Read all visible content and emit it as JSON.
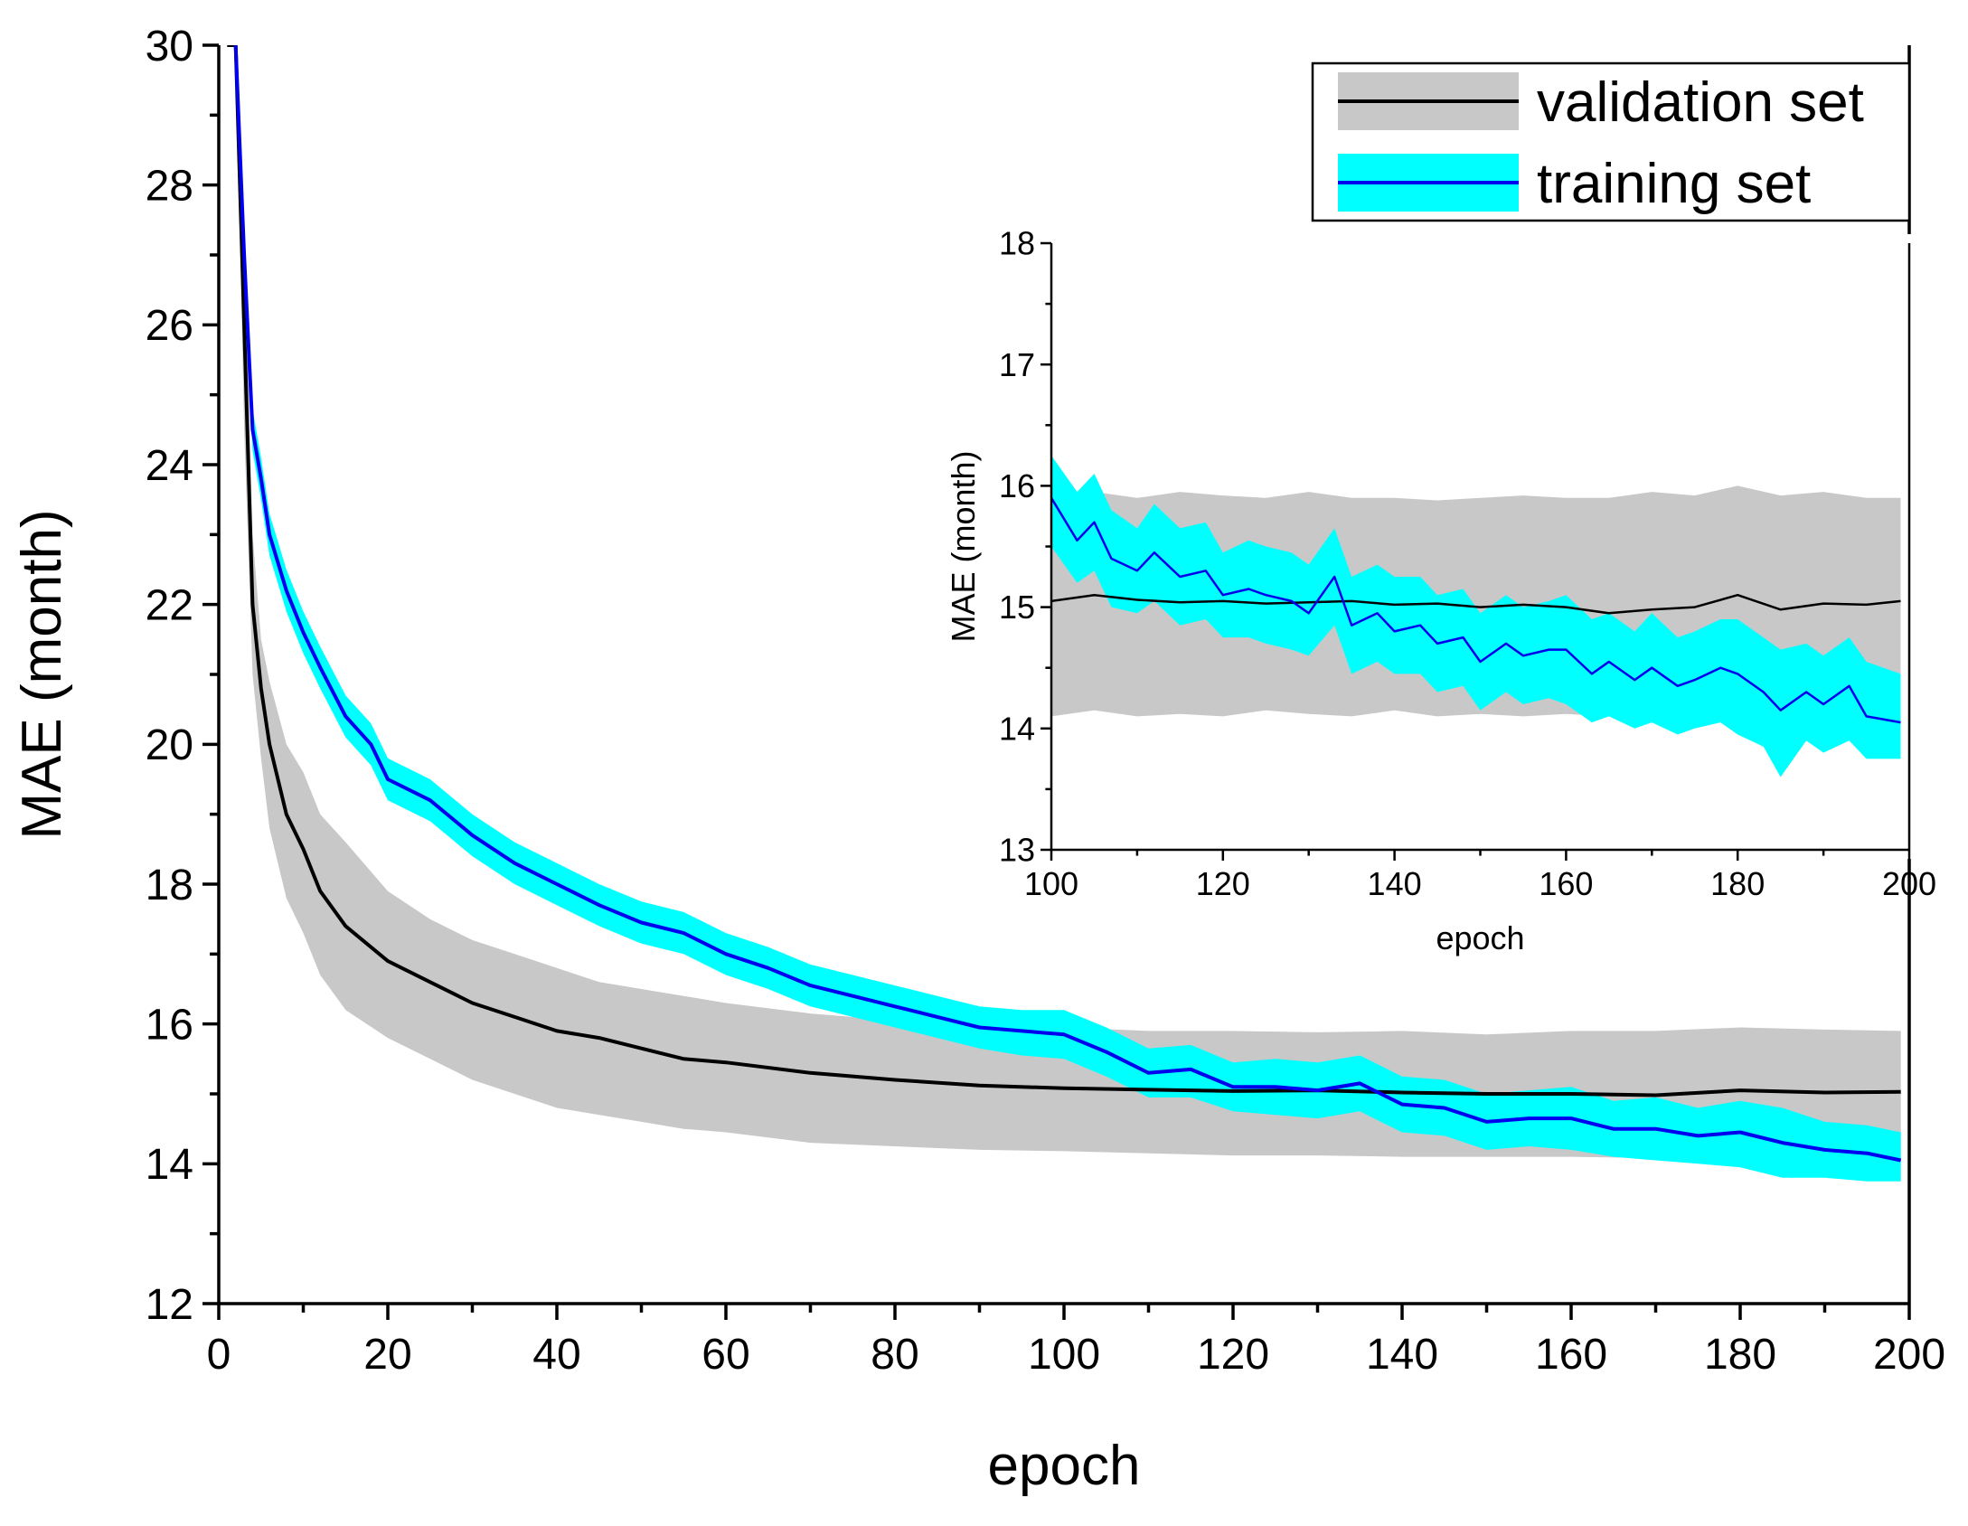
{
  "chart_data": [
    {
      "type": "line",
      "xlabel": "epoch",
      "ylabel": "MAE (month)",
      "xlim": [
        0,
        200
      ],
      "ylim": [
        12,
        30
      ],
      "xticks": [
        0,
        20,
        40,
        60,
        80,
        100,
        120,
        140,
        160,
        180,
        200
      ],
      "yticks": [
        12,
        14,
        16,
        18,
        20,
        22,
        24,
        26,
        28,
        30
      ],
      "grid": false,
      "legend_position": "top-right",
      "series": [
        {
          "name": "validation set",
          "line_color": "#000000",
          "band_color": "#c8c8c8",
          "x": [
            1,
            2,
            3,
            4,
            5,
            6,
            8,
            10,
            12,
            15,
            20,
            25,
            30,
            35,
            40,
            45,
            50,
            55,
            60,
            70,
            80,
            90,
            100,
            110,
            120,
            130,
            140,
            150,
            160,
            170,
            180,
            190,
            199
          ],
          "mean": [
            30.5,
            30.5,
            26.0,
            22.0,
            20.8,
            20.0,
            19.0,
            18.5,
            17.9,
            17.4,
            16.9,
            16.6,
            16.3,
            16.1,
            15.9,
            15.8,
            15.65,
            15.5,
            15.45,
            15.3,
            15.2,
            15.12,
            15.08,
            15.06,
            15.04,
            15.05,
            15.02,
            15.0,
            15.0,
            14.98,
            15.05,
            15.02,
            15.03
          ],
          "lower": [
            30.5,
            30.5,
            24.5,
            21.0,
            19.8,
            18.8,
            17.8,
            17.3,
            16.7,
            16.2,
            15.8,
            15.5,
            15.2,
            15.0,
            14.8,
            14.7,
            14.6,
            14.5,
            14.45,
            14.3,
            14.25,
            14.2,
            14.18,
            14.15,
            14.12,
            14.12,
            14.1,
            14.1,
            14.1,
            14.08,
            14.1,
            14.1,
            14.05
          ],
          "upper": [
            30.5,
            30.5,
            27.5,
            23.0,
            21.5,
            20.9,
            20.0,
            19.6,
            19.0,
            18.6,
            17.9,
            17.5,
            17.2,
            17.0,
            16.8,
            16.6,
            16.5,
            16.4,
            16.3,
            16.15,
            16.05,
            15.95,
            15.95,
            15.9,
            15.9,
            15.88,
            15.9,
            15.85,
            15.9,
            15.9,
            15.95,
            15.92,
            15.9
          ]
        },
        {
          "name": "training set",
          "line_color": "#0000ee",
          "band_color": "#00ffff",
          "x": [
            2,
            3,
            4,
            5,
            6,
            8,
            10,
            12,
            15,
            18,
            20,
            25,
            30,
            35,
            40,
            45,
            50,
            55,
            60,
            65,
            70,
            75,
            80,
            85,
            90,
            95,
            100,
            105,
            110,
            115,
            120,
            125,
            130,
            135,
            140,
            145,
            150,
            155,
            160,
            165,
            170,
            175,
            180,
            185,
            190,
            195,
            199
          ],
          "mean": [
            30.5,
            27.0,
            24.5,
            23.8,
            23.0,
            22.2,
            21.6,
            21.1,
            20.4,
            20.0,
            19.5,
            19.2,
            18.7,
            18.3,
            18.0,
            17.7,
            17.45,
            17.3,
            17.0,
            16.8,
            16.55,
            16.4,
            16.25,
            16.1,
            15.95,
            15.9,
            15.85,
            15.6,
            15.3,
            15.35,
            15.1,
            15.1,
            15.05,
            15.15,
            14.85,
            14.8,
            14.6,
            14.65,
            14.65,
            14.5,
            14.5,
            14.4,
            14.45,
            14.3,
            14.2,
            14.15,
            14.05
          ],
          "lower": [
            30.5,
            26.5,
            24.2,
            23.5,
            22.7,
            21.9,
            21.3,
            20.8,
            20.1,
            19.7,
            19.2,
            18.9,
            18.4,
            18.0,
            17.7,
            17.4,
            17.15,
            17.0,
            16.7,
            16.5,
            16.25,
            16.1,
            15.95,
            15.8,
            15.65,
            15.55,
            15.5,
            15.25,
            14.95,
            14.95,
            14.75,
            14.7,
            14.65,
            14.75,
            14.45,
            14.4,
            14.2,
            14.25,
            14.2,
            14.1,
            14.05,
            14.0,
            13.95,
            13.8,
            13.8,
            13.75,
            13.75
          ],
          "upper": [
            30.5,
            27.5,
            24.8,
            24.1,
            23.3,
            22.5,
            21.9,
            21.4,
            20.7,
            20.3,
            19.8,
            19.5,
            19.0,
            18.6,
            18.3,
            18.0,
            17.75,
            17.6,
            17.3,
            17.1,
            16.85,
            16.7,
            16.55,
            16.4,
            16.25,
            16.2,
            16.2,
            15.95,
            15.65,
            15.7,
            15.45,
            15.5,
            15.45,
            15.55,
            15.25,
            15.2,
            15.0,
            15.05,
            15.1,
            14.9,
            14.95,
            14.8,
            14.9,
            14.8,
            14.6,
            14.55,
            14.45
          ]
        }
      ]
    },
    {
      "type": "line",
      "xlabel": "epoch",
      "ylabel": "MAE (month)",
      "xlim": [
        100,
        200
      ],
      "ylim": [
        13,
        18
      ],
      "xticks": [
        100,
        120,
        140,
        160,
        180,
        200
      ],
      "yticks": [
        13,
        14,
        15,
        16,
        17,
        18
      ],
      "grid": false,
      "series": [
        {
          "name": "validation set",
          "line_color": "#000000",
          "band_color": "#c8c8c8",
          "x": [
            100,
            105,
            110,
            115,
            120,
            125,
            130,
            135,
            140,
            145,
            150,
            155,
            160,
            165,
            170,
            175,
            180,
            185,
            190,
            195,
            199
          ],
          "mean": [
            15.05,
            15.1,
            15.06,
            15.04,
            15.05,
            15.03,
            15.04,
            15.05,
            15.02,
            15.03,
            15.0,
            15.02,
            15.0,
            14.95,
            14.98,
            15.0,
            15.1,
            14.98,
            15.03,
            15.02,
            15.05
          ],
          "lower": [
            14.1,
            14.15,
            14.1,
            14.12,
            14.1,
            14.15,
            14.12,
            14.1,
            14.15,
            14.1,
            14.12,
            14.1,
            14.12,
            14.1,
            14.1,
            14.12,
            14.1,
            14.1,
            14.1,
            14.1,
            14.1
          ],
          "upper": [
            15.95,
            15.95,
            15.9,
            15.95,
            15.92,
            15.9,
            15.95,
            15.9,
            15.9,
            15.88,
            15.9,
            15.92,
            15.9,
            15.9,
            15.95,
            15.92,
            16.0,
            15.92,
            15.95,
            15.9,
            15.9
          ]
        },
        {
          "name": "training set",
          "line_color": "#0000ee",
          "band_color": "#00ffff",
          "x": [
            100,
            103,
            105,
            107,
            110,
            112,
            115,
            118,
            120,
            123,
            125,
            128,
            130,
            133,
            135,
            138,
            140,
            143,
            145,
            148,
            150,
            153,
            155,
            158,
            160,
            163,
            165,
            168,
            170,
            173,
            175,
            178,
            180,
            183,
            185,
            188,
            190,
            193,
            195,
            199
          ],
          "mean": [
            15.9,
            15.55,
            15.7,
            15.4,
            15.3,
            15.45,
            15.25,
            15.3,
            15.1,
            15.15,
            15.1,
            15.05,
            14.95,
            15.25,
            14.85,
            14.95,
            14.8,
            14.85,
            14.7,
            14.75,
            14.55,
            14.7,
            14.6,
            14.65,
            14.65,
            14.45,
            14.55,
            14.4,
            14.5,
            14.35,
            14.4,
            14.5,
            14.45,
            14.3,
            14.15,
            14.3,
            14.2,
            14.35,
            14.1,
            14.05
          ],
          "lower": [
            15.5,
            15.2,
            15.3,
            15.0,
            14.95,
            15.05,
            14.85,
            14.9,
            14.75,
            14.75,
            14.7,
            14.65,
            14.6,
            14.85,
            14.45,
            14.55,
            14.45,
            14.45,
            14.3,
            14.35,
            14.15,
            14.3,
            14.2,
            14.25,
            14.2,
            14.05,
            14.1,
            14.0,
            14.05,
            13.95,
            14.0,
            14.05,
            13.95,
            13.85,
            13.6,
            13.9,
            13.8,
            13.9,
            13.75,
            13.75
          ],
          "upper": [
            16.25,
            15.95,
            16.1,
            15.8,
            15.65,
            15.85,
            15.65,
            15.7,
            15.45,
            15.55,
            15.5,
            15.45,
            15.35,
            15.65,
            15.25,
            15.35,
            15.25,
            15.25,
            15.1,
            15.15,
            14.95,
            15.1,
            15.0,
            15.05,
            15.1,
            14.9,
            14.95,
            14.8,
            14.95,
            14.75,
            14.8,
            14.9,
            14.9,
            14.75,
            14.65,
            14.7,
            14.6,
            14.75,
            14.55,
            14.45
          ]
        }
      ]
    }
  ]
}
